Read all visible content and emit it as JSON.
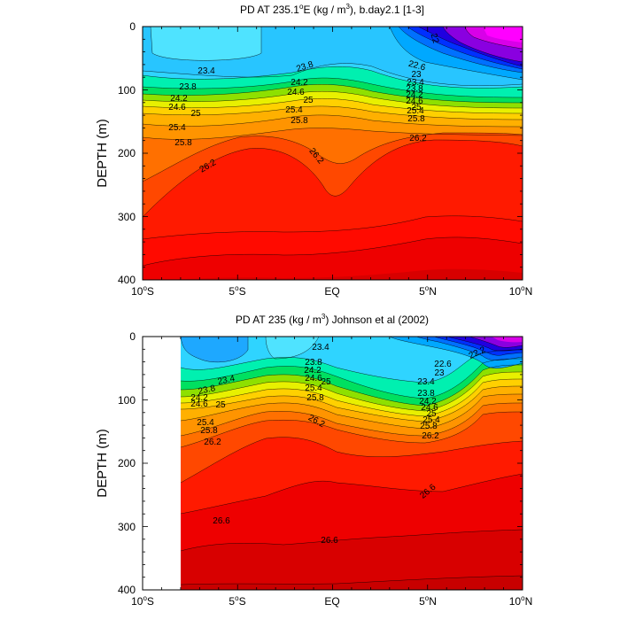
{
  "chart_data": [
    {
      "type": "contour",
      "title_main": "PD AT 235.1",
      "title_sup": "o",
      "title_rest": "E (kg / m",
      "title_sup2": "3",
      "title_end": "), b.day2.1 [1-3]",
      "ylabel": "DEPTH (m)",
      "xlim": [
        -10,
        10
      ],
      "ylim": [
        0,
        400
      ],
      "y_ticks": [
        "0",
        "100",
        "200",
        "300",
        "400"
      ],
      "x_ticks": [
        {
          "num": "10",
          "deg": "o",
          "hem": "S"
        },
        {
          "num": "5",
          "deg": "o",
          "hem": "S"
        },
        {
          "num": "EQ",
          "deg": "",
          "hem": ""
        },
        {
          "num": "5",
          "deg": "o",
          "hem": "N"
        },
        {
          "num": "10",
          "deg": "o",
          "hem": "N"
        }
      ],
      "contour_labels": [
        "23.4",
        "23.8",
        "24.2",
        "24.6",
        "25",
        "25.4",
        "25.8",
        "26.2",
        "23.8",
        "24.2",
        "24.6",
        "25",
        "25.4",
        "25.8",
        "26.2",
        "22.6",
        "23",
        "23.4",
        "23.8",
        "24.2",
        "24.6",
        "25",
        "25.4",
        "25.8",
        "26.2",
        "22"
      ]
    },
    {
      "type": "contour",
      "title_main": "PD AT 235 (kg / m",
      "title_sup2": "3",
      "title_end": ") Johnson et al (2002)",
      "ylabel": "DEPTH (m)",
      "xlim": [
        -10,
        10
      ],
      "ylim": [
        0,
        400
      ],
      "y_ticks": [
        "0",
        "100",
        "200",
        "300",
        "400"
      ],
      "x_ticks": [
        {
          "num": "10",
          "deg": "o",
          "hem": "S"
        },
        {
          "num": "5",
          "deg": "o",
          "hem": "S"
        },
        {
          "num": "EQ",
          "deg": "",
          "hem": ""
        },
        {
          "num": "5",
          "deg": "o",
          "hem": "N"
        },
        {
          "num": "10",
          "deg": "o",
          "hem": "N"
        }
      ],
      "contour_labels": [
        "23.4",
        "23.8",
        "24.2",
        "24.6",
        "25",
        "25.4",
        "25.8",
        "26.2",
        "23.4",
        "23.8",
        "24.2",
        "24.6",
        "25",
        "25.4",
        "25.8",
        "26.2",
        "22.6",
        "23",
        "23.4",
        "23.8",
        "24.2",
        "24.6",
        "25",
        "25.4",
        "25.8",
        "26.2",
        "26.6",
        "26.6",
        "26.6",
        "22.2"
      ]
    }
  ]
}
